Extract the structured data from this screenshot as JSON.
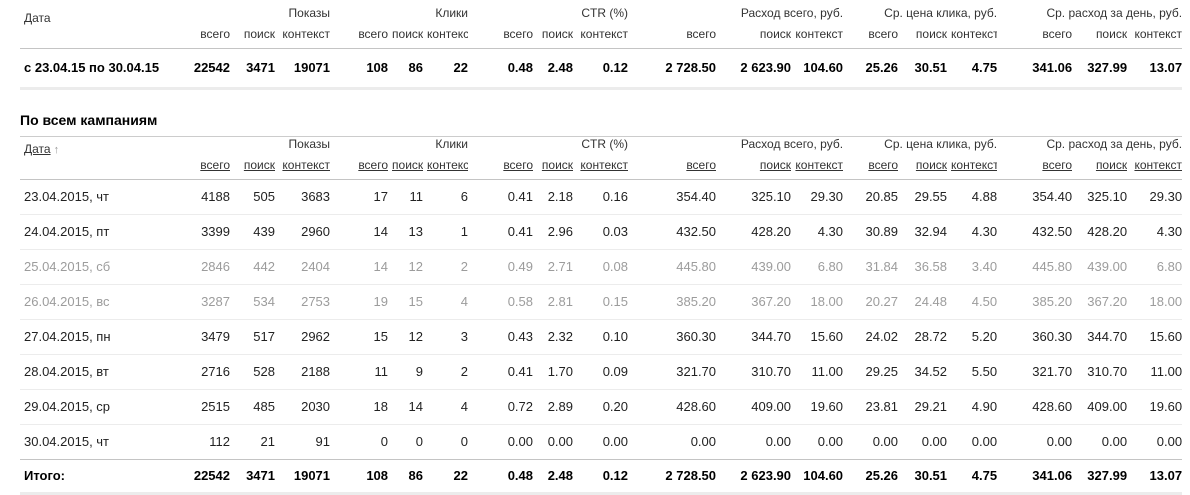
{
  "palette": {
    "text": "#222222",
    "bold_text": "#000000",
    "muted_weekend": "#9c9c9c",
    "header_text": "#333333",
    "separator_light": "#ececec",
    "separator_mid": "#c4c4c4"
  },
  "columns": {
    "date": "Дата",
    "sub": [
      "всего",
      "поиск",
      "контекст"
    ],
    "groups": [
      {
        "label": "Показы"
      },
      {
        "label": "Клики"
      },
      {
        "label": "CTR (%)"
      },
      {
        "label": "Расход всего, руб."
      },
      {
        "label": "Ср. цена клика, руб."
      },
      {
        "label": "Ср. расход за день, руб."
      }
    ]
  },
  "summary": {
    "row": {
      "period": "с 23.04.15 по 30.04.15",
      "values": [
        "22542",
        "3471",
        "19071",
        "108",
        "86",
        "22",
        "0.48",
        "2.48",
        "0.12",
        "2 728.50",
        "2 623.90",
        "104.60",
        "25.26",
        "30.51",
        "4.75",
        "341.06",
        "327.99",
        "13.07"
      ]
    }
  },
  "section_title": "По всем кампаниям",
  "campaigns": {
    "sort_arrow": "↑",
    "rows": [
      {
        "date": "23.04.2015, чт",
        "muted": false,
        "values": [
          "4188",
          "505",
          "3683",
          "17",
          "11",
          "6",
          "0.41",
          "2.18",
          "0.16",
          "354.40",
          "325.10",
          "29.30",
          "20.85",
          "29.55",
          "4.88",
          "354.40",
          "325.10",
          "29.30"
        ]
      },
      {
        "date": "24.04.2015, пт",
        "muted": false,
        "values": [
          "3399",
          "439",
          "2960",
          "14",
          "13",
          "1",
          "0.41",
          "2.96",
          "0.03",
          "432.50",
          "428.20",
          "4.30",
          "30.89",
          "32.94",
          "4.30",
          "432.50",
          "428.20",
          "4.30"
        ]
      },
      {
        "date": "25.04.2015, сб",
        "muted": true,
        "values": [
          "2846",
          "442",
          "2404",
          "14",
          "12",
          "2",
          "0.49",
          "2.71",
          "0.08",
          "445.80",
          "439.00",
          "6.80",
          "31.84",
          "36.58",
          "3.40",
          "445.80",
          "439.00",
          "6.80"
        ]
      },
      {
        "date": "26.04.2015, вс",
        "muted": true,
        "values": [
          "3287",
          "534",
          "2753",
          "19",
          "15",
          "4",
          "0.58",
          "2.81",
          "0.15",
          "385.20",
          "367.20",
          "18.00",
          "20.27",
          "24.48",
          "4.50",
          "385.20",
          "367.20",
          "18.00"
        ]
      },
      {
        "date": "27.04.2015, пн",
        "muted": false,
        "values": [
          "3479",
          "517",
          "2962",
          "15",
          "12",
          "3",
          "0.43",
          "2.32",
          "0.10",
          "360.30",
          "344.70",
          "15.60",
          "24.02",
          "28.72",
          "5.20",
          "360.30",
          "344.70",
          "15.60"
        ]
      },
      {
        "date": "28.04.2015, вт",
        "muted": false,
        "values": [
          "2716",
          "528",
          "2188",
          "11",
          "9",
          "2",
          "0.41",
          "1.70",
          "0.09",
          "321.70",
          "310.70",
          "11.00",
          "29.25",
          "34.52",
          "5.50",
          "321.70",
          "310.70",
          "11.00"
        ]
      },
      {
        "date": "29.04.2015, ср",
        "muted": false,
        "values": [
          "2515",
          "485",
          "2030",
          "18",
          "14",
          "4",
          "0.72",
          "2.89",
          "0.20",
          "428.60",
          "409.00",
          "19.60",
          "23.81",
          "29.21",
          "4.90",
          "428.60",
          "409.00",
          "19.60"
        ]
      },
      {
        "date": "30.04.2015, чт",
        "muted": false,
        "values": [
          "112",
          "21",
          "91",
          "0",
          "0",
          "0",
          "0.00",
          "0.00",
          "0.00",
          "0.00",
          "0.00",
          "0.00",
          "0.00",
          "0.00",
          "0.00",
          "0.00",
          "0.00",
          "0.00"
        ]
      }
    ],
    "total": {
      "label": "Итого:",
      "values": [
        "22542",
        "3471",
        "19071",
        "108",
        "86",
        "22",
        "0.48",
        "2.48",
        "0.12",
        "2 728.50",
        "2 623.90",
        "104.60",
        "25.26",
        "30.51",
        "4.75",
        "341.06",
        "327.99",
        "13.07"
      ]
    }
  }
}
